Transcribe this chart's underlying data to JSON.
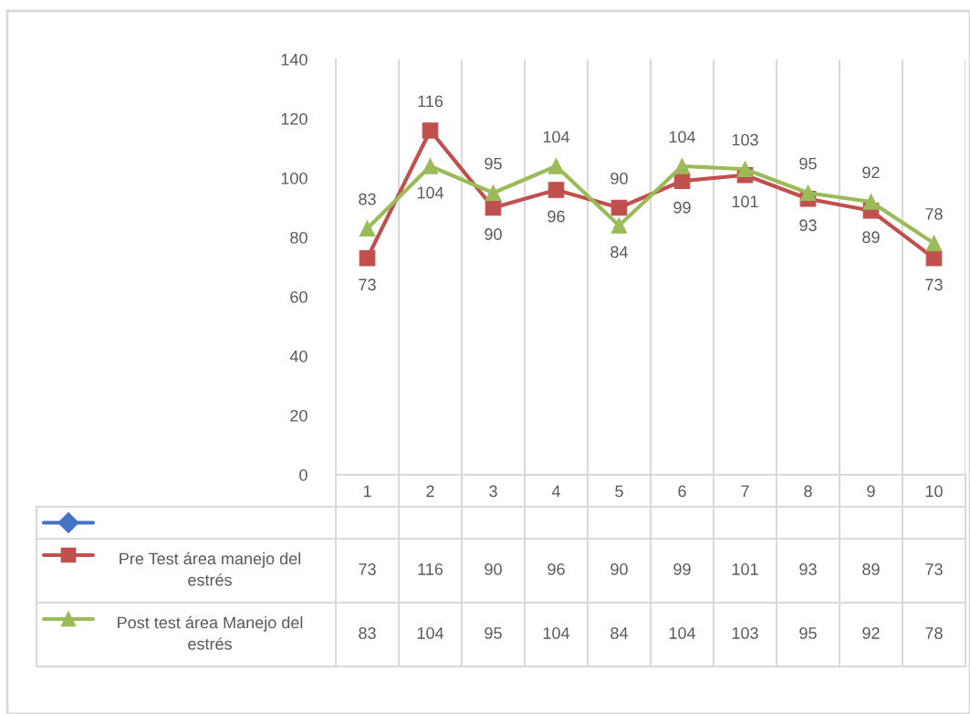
{
  "chart_data": {
    "type": "line",
    "categories": [
      "1",
      "2",
      "3",
      "4",
      "5",
      "6",
      "7",
      "8",
      "9",
      "10"
    ],
    "series": [
      {
        "color": "#4472c4",
        "marker": "diamond",
        "values": [
          null,
          null,
          null,
          null,
          null,
          null,
          null,
          null,
          null,
          null
        ]
      },
      {
        "name": "Pre Test área manejo del estrés",
        "color": "#c0504d",
        "marker": "square",
        "values": [
          73,
          116,
          90,
          96,
          90,
          99,
          101,
          93,
          89,
          73
        ]
      },
      {
        "name": "Post test área Manejo del estrés",
        "color": "#9bbb59",
        "marker": "triangle",
        "values": [
          83,
          104,
          95,
          104,
          84,
          104,
          103,
          95,
          92,
          78
        ]
      }
    ],
    "annotations": [
      {
        "text": "73",
        "x": "1",
        "y": 73
      },
      {
        "text": "116",
        "x": "2",
        "y": 116
      },
      {
        "text": "90",
        "x": "3",
        "y": 90
      },
      {
        "text": "96",
        "x": "4",
        "y": 96
      },
      {
        "text": "90",
        "x": "5",
        "y": 90
      },
      {
        "text": "99",
        "x": "6",
        "y": 99
      },
      {
        "text": "101",
        "x": "7",
        "y": 101
      },
      {
        "text": "93",
        "x": "8",
        "y": 93
      },
      {
        "text": "89",
        "x": "9",
        "y": 89
      },
      {
        "text": "73",
        "x": "10",
        "y": 73
      },
      {
        "text": "83",
        "x": "1",
        "y": 83
      },
      {
        "text": "104",
        "x": "2",
        "y": 104
      },
      {
        "text": "95",
        "x": "3",
        "y": 95
      },
      {
        "text": "104",
        "x": "4",
        "y": 104
      },
      {
        "text": "84",
        "x": "5",
        "y": 84
      },
      {
        "text": "104",
        "x": "6",
        "y": 104
      },
      {
        "text": "103",
        "x": "7",
        "y": 103
      },
      {
        "text": "95",
        "x": "8",
        "y": 95
      },
      {
        "text": "92",
        "x": "9",
        "y": 92
      },
      {
        "text": "78",
        "x": "10",
        "y": 78
      }
    ],
    "ylim": [
      0,
      140
    ],
    "yticks": [
      0,
      20,
      40,
      60,
      80,
      100,
      120,
      140
    ],
    "grid": "x",
    "legend": "bottom",
    "data_labels": true
  }
}
